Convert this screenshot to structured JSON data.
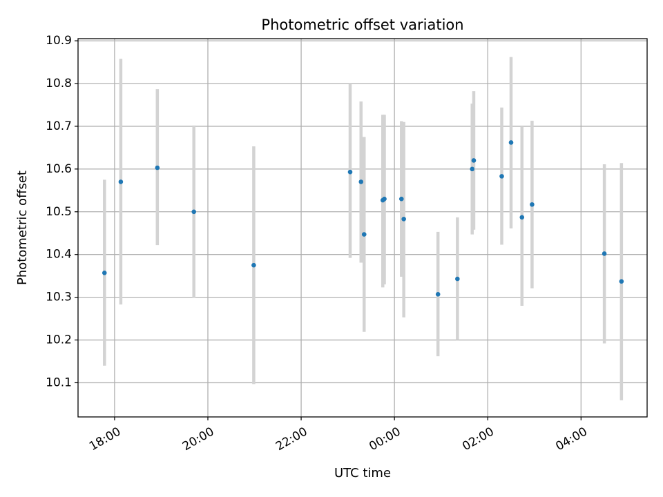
{
  "chart_data": {
    "type": "scatter",
    "title": "Photometric offset variation",
    "xlabel": "UTC time",
    "ylabel": "Photometric offset",
    "x_ticks": [
      "18:00",
      "20:00",
      "22:00",
      "00:00",
      "02:00",
      "04:00"
    ],
    "y_ticks": [
      "10.1",
      "10.2",
      "10.3",
      "10.4",
      "10.5",
      "10.6",
      "10.7",
      "10.8",
      "10.9"
    ],
    "xlim": [
      "17:13",
      "05:25"
    ],
    "ylim": [
      10.02,
      10.905
    ],
    "grid": true,
    "marker_color": "#1f77b4",
    "errorbar_color": "#d3d3d3",
    "points": [
      {
        "x": "17:47",
        "y": 10.357,
        "ylow": 10.14,
        "yhigh": 10.575
      },
      {
        "x": "18:08",
        "y": 10.57,
        "ylow": 10.283,
        "yhigh": 10.858
      },
      {
        "x": "18:55",
        "y": 10.603,
        "ylow": 10.422,
        "yhigh": 10.787
      },
      {
        "x": "19:42",
        "y": 10.5,
        "ylow": 10.3,
        "yhigh": 10.702
      },
      {
        "x": "20:59",
        "y": 10.375,
        "ylow": 10.097,
        "yhigh": 10.653
      },
      {
        "x": "23:03",
        "y": 10.593,
        "ylow": 10.392,
        "yhigh": 10.8
      },
      {
        "x": "23:17",
        "y": 10.57,
        "ylow": 10.381,
        "yhigh": 10.758
      },
      {
        "x": "23:21",
        "y": 10.447,
        "ylow": 10.219,
        "yhigh": 10.675
      },
      {
        "x": "23:45",
        "y": 10.527,
        "ylow": 10.323,
        "yhigh": 10.727
      },
      {
        "x": "23:47",
        "y": 10.53,
        "ylow": 10.33,
        "yhigh": 10.727
      },
      {
        "x": "00:09",
        "y": 10.53,
        "ylow": 10.348,
        "yhigh": 10.712
      },
      {
        "x": "00:12",
        "y": 10.483,
        "ylow": 10.253,
        "yhigh": 10.71
      },
      {
        "x": "00:56",
        "y": 10.307,
        "ylow": 10.162,
        "yhigh": 10.453
      },
      {
        "x": "01:21",
        "y": 10.343,
        "ylow": 10.2,
        "yhigh": 10.487
      },
      {
        "x": "01:40",
        "y": 10.6,
        "ylow": 10.447,
        "yhigh": 10.753
      },
      {
        "x": "01:42",
        "y": 10.62,
        "ylow": 10.458,
        "yhigh": 10.782
      },
      {
        "x": "02:18",
        "y": 10.583,
        "ylow": 10.423,
        "yhigh": 10.744
      },
      {
        "x": "02:30",
        "y": 10.662,
        "ylow": 10.461,
        "yhigh": 10.862
      },
      {
        "x": "02:44",
        "y": 10.487,
        "ylow": 10.28,
        "yhigh": 10.7
      },
      {
        "x": "02:57",
        "y": 10.517,
        "ylow": 10.321,
        "yhigh": 10.713
      },
      {
        "x": "04:30",
        "y": 10.402,
        "ylow": 10.192,
        "yhigh": 10.611
      },
      {
        "x": "04:52",
        "y": 10.337,
        "ylow": 10.059,
        "yhigh": 10.614
      }
    ]
  }
}
